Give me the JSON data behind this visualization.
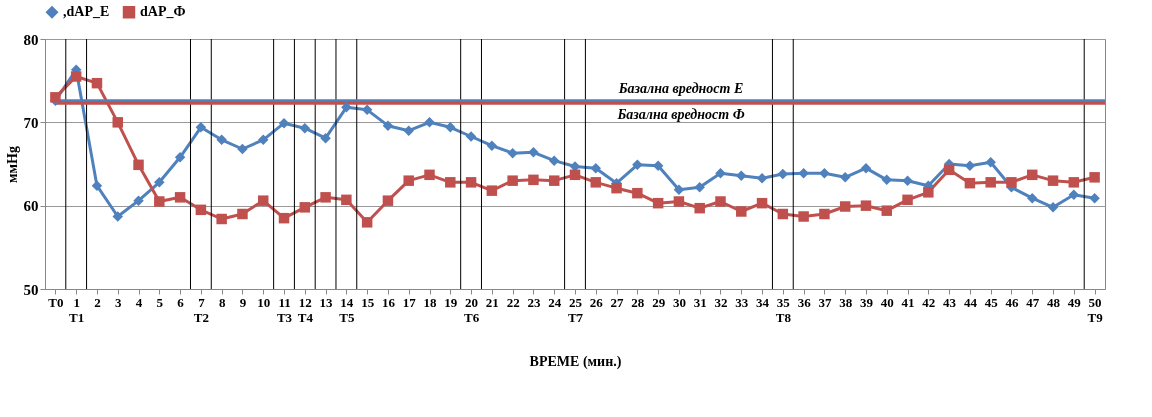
{
  "chart_data": {
    "type": "line",
    "xlabel": "ВРЕМЕ (мин.)",
    "ylabel": "ммHg",
    "x": [
      0,
      1,
      2,
      3,
      4,
      5,
      6,
      7,
      8,
      9,
      10,
      11,
      12,
      13,
      14,
      15,
      16,
      17,
      18,
      19,
      20,
      21,
      22,
      23,
      24,
      25,
      26,
      27,
      28,
      29,
      30,
      31,
      32,
      33,
      34,
      35,
      36,
      37,
      38,
      39,
      40,
      41,
      42,
      43,
      44,
      45,
      46,
      47,
      48,
      49,
      50
    ],
    "xlim": [
      -0.5,
      50.5
    ],
    "xticks": [
      {
        "value": 0,
        "label": "T0"
      },
      {
        "value": 1,
        "label": "1\nT1"
      },
      2,
      3,
      4,
      5,
      6,
      {
        "value": 7,
        "label": "7\nT2"
      },
      8,
      9,
      10,
      {
        "value": 11,
        "label": "11\nT3"
      },
      {
        "value": 12,
        "label": "12\nT4"
      },
      13,
      {
        "value": 14,
        "label": "14\nT5"
      },
      15,
      16,
      17,
      18,
      19,
      {
        "value": 20,
        "label": "20\nT6"
      },
      21,
      22,
      23,
      24,
      {
        "value": 25,
        "label": "25\nT7"
      },
      26,
      27,
      28,
      29,
      30,
      31,
      32,
      33,
      34,
      {
        "value": 35,
        "label": "35\nT8"
      },
      36,
      37,
      38,
      39,
      40,
      41,
      42,
      43,
      44,
      45,
      46,
      47,
      48,
      49,
      {
        "value": 50,
        "label": "50\nT9"
      }
    ],
    "series": [
      {
        "name": ",dAP_E",
        "color": "#4f81bd",
        "marker": "diamond",
        "values": [
          72.6,
          76.3,
          62.4,
          58.7,
          60.6,
          62.8,
          65.8,
          69.4,
          67.9,
          66.8,
          67.9,
          69.9,
          69.3,
          68.1,
          71.8,
          71.5,
          69.6,
          69.0,
          70.0,
          69.4,
          68.3,
          67.2,
          66.3,
          66.4,
          65.4,
          64.7,
          64.5,
          62.7,
          64.9,
          64.8,
          61.9,
          62.2,
          63.9,
          63.6,
          63.3,
          63.8,
          63.9,
          63.9,
          63.4,
          64.5,
          63.1,
          63.0,
          62.4,
          65.0,
          64.8,
          65.2,
          62.2,
          60.9,
          59.8,
          61.3,
          60.9
        ]
      },
      {
        "name": "dAP_Ф",
        "color": "#c0504d",
        "marker": "square",
        "values": [
          73.0,
          75.5,
          74.7,
          70.0,
          64.9,
          60.5,
          61.0,
          59.5,
          58.4,
          59.0,
          60.6,
          58.5,
          59.8,
          61.0,
          60.7,
          58.0,
          60.6,
          63.0,
          63.7,
          62.8,
          62.8,
          61.8,
          63.0,
          63.1,
          63.0,
          63.7,
          62.8,
          62.1,
          61.5,
          60.3,
          60.5,
          59.7,
          60.5,
          59.3,
          60.3,
          59.0,
          58.7,
          59.0,
          59.9,
          60.0,
          59.4,
          60.7,
          61.6,
          64.3,
          62.7,
          62.8,
          62.8,
          63.7,
          63.0,
          62.8,
          63.4
        ]
      }
    ],
    "ylim": [
      50,
      80
    ],
    "yticks": [
      50,
      60,
      70,
      80
    ],
    "grid": "y",
    "legend": "top",
    "ref_lines": [
      {
        "axis": "y",
        "value": 72.6,
        "label": "Базална вредност Е",
        "color": "#4f81bd"
      },
      {
        "axis": "y",
        "value": 72.3,
        "label": "Базална вредност Ф",
        "color": "#c0504d"
      },
      {
        "axis": "x",
        "value": 0.5,
        "color": "#000000"
      },
      {
        "axis": "x",
        "value": 1.5,
        "color": "#000000"
      },
      {
        "axis": "x",
        "value": 6.5,
        "color": "#000000"
      },
      {
        "axis": "x",
        "value": 7.5,
        "color": "#000000"
      },
      {
        "axis": "x",
        "value": 10.5,
        "color": "#000000"
      },
      {
        "axis": "x",
        "value": 11.5,
        "color": "#000000"
      },
      {
        "axis": "x",
        "value": 12.5,
        "color": "#000000"
      },
      {
        "axis": "x",
        "value": 13.5,
        "color": "#000000"
      },
      {
        "axis": "x",
        "value": 14.5,
        "color": "#000000"
      },
      {
        "axis": "x",
        "value": 19.5,
        "color": "#000000"
      },
      {
        "axis": "x",
        "value": 20.5,
        "color": "#000000"
      },
      {
        "axis": "x",
        "value": 24.5,
        "color": "#000000"
      },
      {
        "axis": "x",
        "value": 25.5,
        "color": "#000000"
      },
      {
        "axis": "x",
        "value": 34.5,
        "color": "#000000"
      },
      {
        "axis": "x",
        "value": 35.5,
        "color": "#000000"
      },
      {
        "axis": "x",
        "value": 49.5,
        "color": "#000000"
      }
    ]
  }
}
